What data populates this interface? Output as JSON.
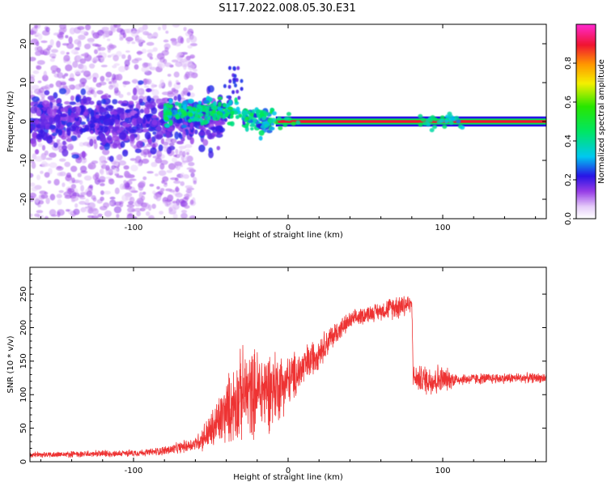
{
  "figure_title": "S117.2022.008.05.30.E31",
  "colors": {
    "trace": "#ee3333",
    "axis": "#000000",
    "background": "#ffffff"
  },
  "chart_data": [
    {
      "id": "spectrogram",
      "type": "heatmap",
      "xlabel": "Height of straight line (km)",
      "ylabel": "Frequency (Hz)",
      "xlim": [
        -167,
        167
      ],
      "ylim": [
        -25,
        25
      ],
      "xticks": [
        -100,
        0,
        100
      ],
      "yticks": [
        -20,
        -10,
        0,
        10,
        20
      ],
      "colorbar": {
        "label": "Normalized spectral amplitude",
        "range": [
          0,
          1
        ],
        "ticks": [
          0.0,
          0.2,
          0.4,
          0.6,
          0.8
        ],
        "tick_labels": [
          "0.0",
          "0.2",
          "0.4",
          "0.6",
          "0.8"
        ],
        "colormap": "rainbow: white-violet-blue-cyan-green-yellow-orange-red-magenta"
      },
      "description_values": {
        "noise_region_km": [
          -167,
          -60
        ],
        "scintillation_region_km": [
          -80,
          0
        ],
        "carrier_frequency_hz": 0,
        "carrier_band_hz": [
          -1,
          1
        ],
        "noise_spread_hz": [
          -25,
          25
        ]
      }
    },
    {
      "id": "snr",
      "type": "line",
      "xlabel": "Height of straight line (km)",
      "ylabel": "SNR (10 * v/v)",
      "xlim": [
        -167,
        167
      ],
      "ylim": [
        0,
        290
      ],
      "xticks": [
        -100,
        0,
        100
      ],
      "yticks": [
        0,
        50,
        100,
        150,
        200,
        250
      ],
      "series": [
        {
          "color": "#ee3333",
          "anchors": [
            [
              -167,
              10
            ],
            [
              -140,
              11
            ],
            [
              -110,
              12
            ],
            [
              -90,
              14
            ],
            [
              -75,
              18
            ],
            [
              -60,
              27
            ],
            [
              -50,
              45
            ],
            [
              -40,
              75
            ],
            [
              -30,
              100
            ],
            [
              -20,
              105
            ],
            [
              -10,
              110
            ],
            [
              0,
              120
            ],
            [
              10,
              140
            ],
            [
              20,
              165
            ],
            [
              30,
              190
            ],
            [
              40,
              210
            ],
            [
              50,
              220
            ],
            [
              60,
              225
            ],
            [
              70,
              232
            ],
            [
              75,
              235
            ],
            [
              80,
              235
            ],
            [
              81,
              125
            ],
            [
              90,
              122
            ],
            [
              110,
              123
            ],
            [
              130,
              124
            ],
            [
              150,
              125
            ],
            [
              167,
              125
            ]
          ],
          "noise_amplitude": [
            [
              -167,
              5
            ],
            [
              -90,
              6
            ],
            [
              -60,
              12
            ],
            [
              -45,
              45
            ],
            [
              -30,
              80
            ],
            [
              -10,
              70
            ],
            [
              0,
              45
            ],
            [
              20,
              28
            ],
            [
              40,
              15
            ],
            [
              60,
              15
            ],
            [
              75,
              25
            ],
            [
              80,
              10
            ],
            [
              81,
              20
            ],
            [
              95,
              30
            ],
            [
              110,
              10
            ],
            [
              167,
              8
            ]
          ]
        }
      ]
    }
  ]
}
